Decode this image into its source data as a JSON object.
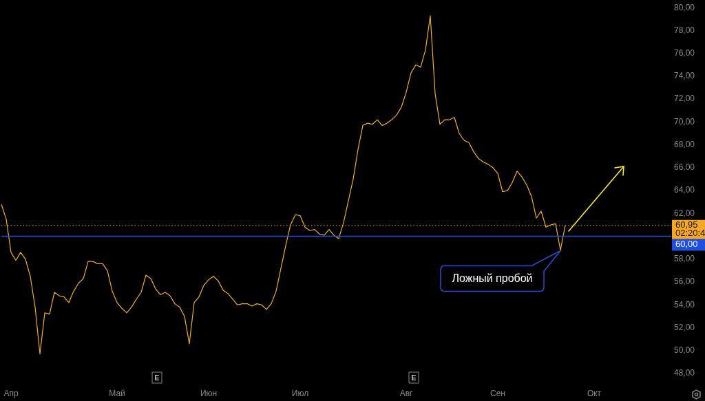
{
  "chart_data": {
    "type": "line",
    "marker": "none",
    "categories": [
      null,
      null,
      "Апр",
      null,
      null,
      null,
      null,
      null,
      null,
      null,
      null,
      null,
      null,
      null,
      null,
      null,
      null,
      null,
      null,
      null,
      null,
      null,
      null,
      null,
      "Май",
      null,
      null,
      null,
      null,
      null,
      null,
      null,
      null,
      null,
      null,
      null,
      null,
      null,
      null,
      null,
      null,
      null,
      null,
      "Июн",
      null,
      null,
      null,
      null,
      null,
      null,
      null,
      null,
      null,
      null,
      null,
      null,
      null,
      null,
      null,
      null,
      null,
      null,
      "Июл",
      null,
      null,
      null,
      null,
      null,
      null,
      null,
      null,
      null,
      null,
      null,
      null,
      null,
      null,
      null,
      null,
      null,
      null,
      null,
      null,
      null,
      "Авг",
      null,
      null,
      null,
      null,
      null,
      null,
      null,
      null,
      null,
      null,
      null,
      null,
      null,
      null,
      null,
      null,
      null,
      null,
      "Сен",
      null,
      null,
      null,
      null,
      null,
      null,
      null,
      null,
      null,
      null,
      null,
      null,
      null,
      null,
      null,
      null,
      null,
      null,
      null,
      "Окт",
      null,
      null,
      null,
      null,
      null,
      null,
      null,
      null,
      null,
      null,
      null,
      null,
      null,
      null,
      null,
      null
    ],
    "series": [
      {
        "color": "#f2b01e",
        "values": [
          62.8,
          61.5,
          58.6,
          57.9,
          58.6,
          58.0,
          56.5,
          53.8,
          49.7,
          53.3,
          53.2,
          55.1,
          54.8,
          54.7,
          54.2,
          55.2,
          55.9,
          56.3,
          57.8,
          57.8,
          57.6,
          57.6,
          57.0,
          55.2,
          54.2,
          53.7,
          53.3,
          53.8,
          54.5,
          55.1,
          56.6,
          56.3,
          55.4,
          54.9,
          55.1,
          54.8,
          54.1,
          53.8,
          53.0,
          50.6,
          54.2,
          54.7,
          55.7,
          56.2,
          56.5,
          56.1,
          55.3,
          55.0,
          54.5,
          54.0,
          54.1,
          54.1,
          53.9,
          54.1,
          54.0,
          53.6,
          54.1,
          55.2,
          57.2,
          59.2,
          61.0,
          61.9,
          61.8,
          60.8,
          60.5,
          60.6,
          60.2,
          60.1,
          60.6,
          60.1,
          59.8,
          61.2,
          63.1,
          65.0,
          67.6,
          69.7,
          69.9,
          69.8,
          70.2,
          69.7,
          69.9,
          70.2,
          70.6,
          71.3,
          72.6,
          74.3,
          75.0,
          74.8,
          76.3,
          79.3,
          72.5,
          69.8,
          70.2,
          70.2,
          70.4,
          69.0,
          68.4,
          68.2,
          67.4,
          66.8,
          66.5,
          66.3,
          66.0,
          65.5,
          63.9,
          64.0,
          64.7,
          65.7,
          65.2,
          64.5,
          63.5,
          61.6,
          62.2,
          60.8,
          61.0,
          61.1,
          58.8,
          60.95,
          null,
          null,
          null,
          null,
          null,
          null,
          null,
          null,
          null,
          null,
          null,
          null,
          null,
          null,
          null,
          null,
          null,
          null,
          null,
          null,
          null,
          null
        ]
      }
    ],
    "ylim": [
      48,
      80
    ],
    "yticks": [
      {
        "value": 48,
        "label": "48,00"
      },
      {
        "value": 50,
        "label": "50,00"
      },
      {
        "value": 52,
        "label": "52,00"
      },
      {
        "value": 54,
        "label": "54,00"
      },
      {
        "value": 56,
        "label": "56,00"
      },
      {
        "value": 58,
        "label": "58,00"
      },
      {
        "value": 62,
        "label": "62,00"
      },
      {
        "value": 64,
        "label": "64,00"
      },
      {
        "value": 66,
        "label": "66,00"
      },
      {
        "value": 68,
        "label": "68,00"
      },
      {
        "value": 70,
        "label": "70,00"
      },
      {
        "value": 72,
        "label": "72,00"
      },
      {
        "value": 74,
        "label": "74,00"
      },
      {
        "value": 76,
        "label": "76,00"
      },
      {
        "value": 78,
        "label": "78,00"
      },
      {
        "value": 80,
        "label": "80,00"
      }
    ],
    "ref_lines": [
      {
        "axis": "y",
        "value": 60.95,
        "label": "60,95",
        "color": "#f5a623",
        "line_style": "dotted"
      },
      {
        "axis": "y",
        "value": 60,
        "label": "60,00",
        "color": "#1f4fe0",
        "line_style": "solid"
      }
    ],
    "annotations": [
      "Ложный пробой",
      "02:20:4",
      "E",
      "E"
    ]
  }
}
